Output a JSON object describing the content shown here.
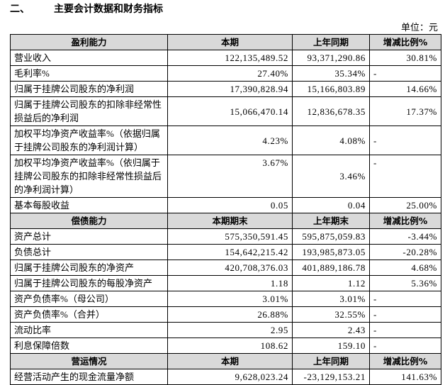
{
  "header": {
    "section_number": "二、",
    "title": "主要会计数据和财务指标",
    "unit": "单位：元"
  },
  "table": {
    "sections": [
      {
        "header": [
          "盈利能力",
          "本期",
          "上年同期",
          "增减比例%"
        ],
        "rows": [
          [
            "营业收入",
            "122,135,489.52",
            "93,371,290.86",
            "30.81%"
          ],
          [
            "毛利率%",
            "27.40%",
            "35.34%",
            "-"
          ],
          [
            "归属于挂牌公司股东的净利润",
            "17,390,828.94",
            "15,166,803.89",
            "14.66%"
          ],
          [
            "归属于挂牌公司股东的扣除非经常性损益后的净利润",
            "15,066,470.14",
            "12,836,678.35",
            "17.37%"
          ],
          [
            "加权平均净资产收益率%（依据归属于挂牌公司股东的净利润计算）",
            "4.23%",
            "4.08%",
            "-"
          ],
          [
            "加权平均净资产收益率%（依归属于挂牌公司股东的扣除非经常性损益后的净利润计算）",
            "3.67%",
            "3.46%",
            "-"
          ],
          [
            "基本每股收益",
            "0.05",
            "0.04",
            "25.00%"
          ]
        ]
      },
      {
        "header": [
          "偿债能力",
          "本期期末",
          "上年期末",
          "增减比例%"
        ],
        "rows": [
          [
            "资产总计",
            "575,350,591.45",
            "595,875,059.83",
            "-3.44%"
          ],
          [
            "负债总计",
            "154,642,215.42",
            "193,985,873.05",
            "-20.28%"
          ],
          [
            "归属于挂牌公司股东的净资产",
            "420,708,376.03",
            "401,889,186.78",
            "4.68%"
          ],
          [
            "归属于挂牌公司股东的每股净资产",
            "1.18",
            "1.12",
            "5.36%"
          ],
          [
            "资产负债率%（母公司）",
            "3.01%",
            "3.01%",
            "-"
          ],
          [
            "资产负债率%（合并）",
            "26.88%",
            "32.55%",
            "-"
          ],
          [
            "流动比率",
            "2.95",
            "2.43",
            "-"
          ],
          [
            "利息保障倍数",
            "108.62",
            "159.10",
            "-"
          ]
        ]
      },
      {
        "header": [
          "营运情况",
          "本期",
          "上年同期",
          "增减比例%"
        ],
        "rows": [
          [
            "经营活动产生的现金流量净额",
            "9,628,023.24",
            "-23,129,153.21",
            "141.63%"
          ]
        ]
      }
    ]
  }
}
